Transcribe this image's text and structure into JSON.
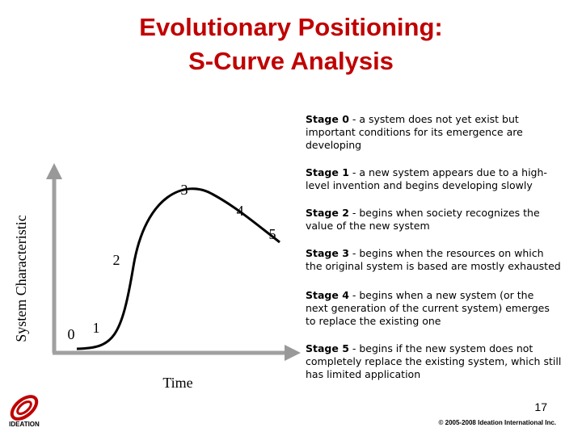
{
  "title": [
    "Evolutionary Positioning:",
    "S-Curve Analysis"
  ],
  "diagram": {
    "y_axis_label": "System Characteristic",
    "x_axis_label": "Time",
    "stage_markers": [
      "0",
      "1",
      "2",
      "3",
      "4",
      "5"
    ]
  },
  "stages": [
    {
      "label": "Stage 0",
      "lines": [
        "- a system does not yet exist but",
        "important conditions for its emergence are",
        "developing"
      ]
    },
    {
      "label": "Stage 1",
      "lines": [
        "- a new system appears due to a high-",
        "level invention and begins developing slowly"
      ]
    },
    {
      "label": "Stage 2",
      "lines": [
        "- begins when society recognizes the",
        "value of the new system"
      ]
    },
    {
      "label": "Stage 3",
      "lines": [
        "- begins when the resources on which",
        "the original system is based are mostly exhausted"
      ]
    },
    {
      "label": "Stage 4",
      "lines": [
        "- begins when a new system (or the",
        "next  generation of the current system) emerges",
        "to replace the existing one"
      ]
    },
    {
      "label": "Stage 5",
      "lines": [
        "- begins if the new system does not",
        "completely replace the existing system, which still",
        "has limited application"
      ]
    }
  ],
  "footer": {
    "page_number": "17",
    "copyright": "© 2005-2008 Ideation International Inc.",
    "logo_text": "IDEATION"
  }
}
